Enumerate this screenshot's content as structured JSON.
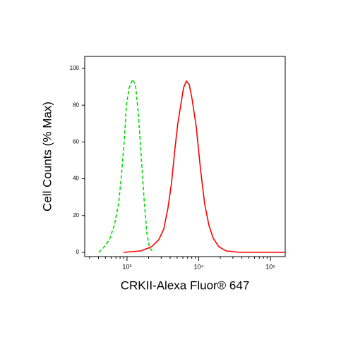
{
  "chart_data": {
    "type": "line",
    "xlabel": "CRKII-Alexa Fluor® 647",
    "ylabel": "Cell Counts (% Max)",
    "xscale": "log",
    "xlim": [
      257,
      161000
    ],
    "ylim": [
      -2.3,
      106.5
    ],
    "xticks": [
      {
        "value": 1000,
        "label": "10³"
      },
      {
        "value": 10000,
        "label": "10⁴"
      },
      {
        "value": 100000,
        "label": "10⁵"
      }
    ],
    "xminorticks": [
      300,
      400,
      500,
      600,
      700,
      800,
      900,
      2000,
      3000,
      4000,
      5000,
      6000,
      7000,
      8000,
      9000,
      20000,
      30000,
      40000,
      50000,
      60000,
      70000,
      80000,
      90000
    ],
    "yticks": [
      0,
      20,
      40,
      60,
      80,
      100
    ],
    "series": [
      {
        "color": "#00dd00",
        "dashed": true,
        "x": [
          404,
          484,
          568,
          665,
          762,
          834,
          914,
          978,
          1071,
          1199,
          1313,
          1438,
          1574,
          1723,
          1888,
          2066,
          2366
        ],
        "values": [
          0,
          3.1,
          6.9,
          14.6,
          26.1,
          41.4,
          60.5,
          79.7,
          89.3,
          94,
          91,
          75.9,
          52.9,
          29.9,
          10.7,
          2.3,
          0
        ]
      },
      {
        "color": "#ff0000",
        "dashed": false,
        "x": [
          893,
          1574,
          2213,
          2775,
          3251,
          3725,
          4176,
          4677,
          5118,
          5606,
          6139,
          6723,
          7362,
          8061,
          9246,
          10590,
          12140,
          13900,
          15920,
          19090,
          23950,
          37670,
          160000
        ],
        "values": [
          0,
          0.8,
          3.1,
          6.9,
          12.6,
          24.1,
          37.5,
          56.7,
          70.1,
          79.7,
          89.3,
          93.1,
          91.2,
          83.5,
          68.2,
          45.2,
          26.1,
          14.6,
          7.7,
          3.1,
          0.8,
          0,
          0
        ]
      }
    ]
  }
}
